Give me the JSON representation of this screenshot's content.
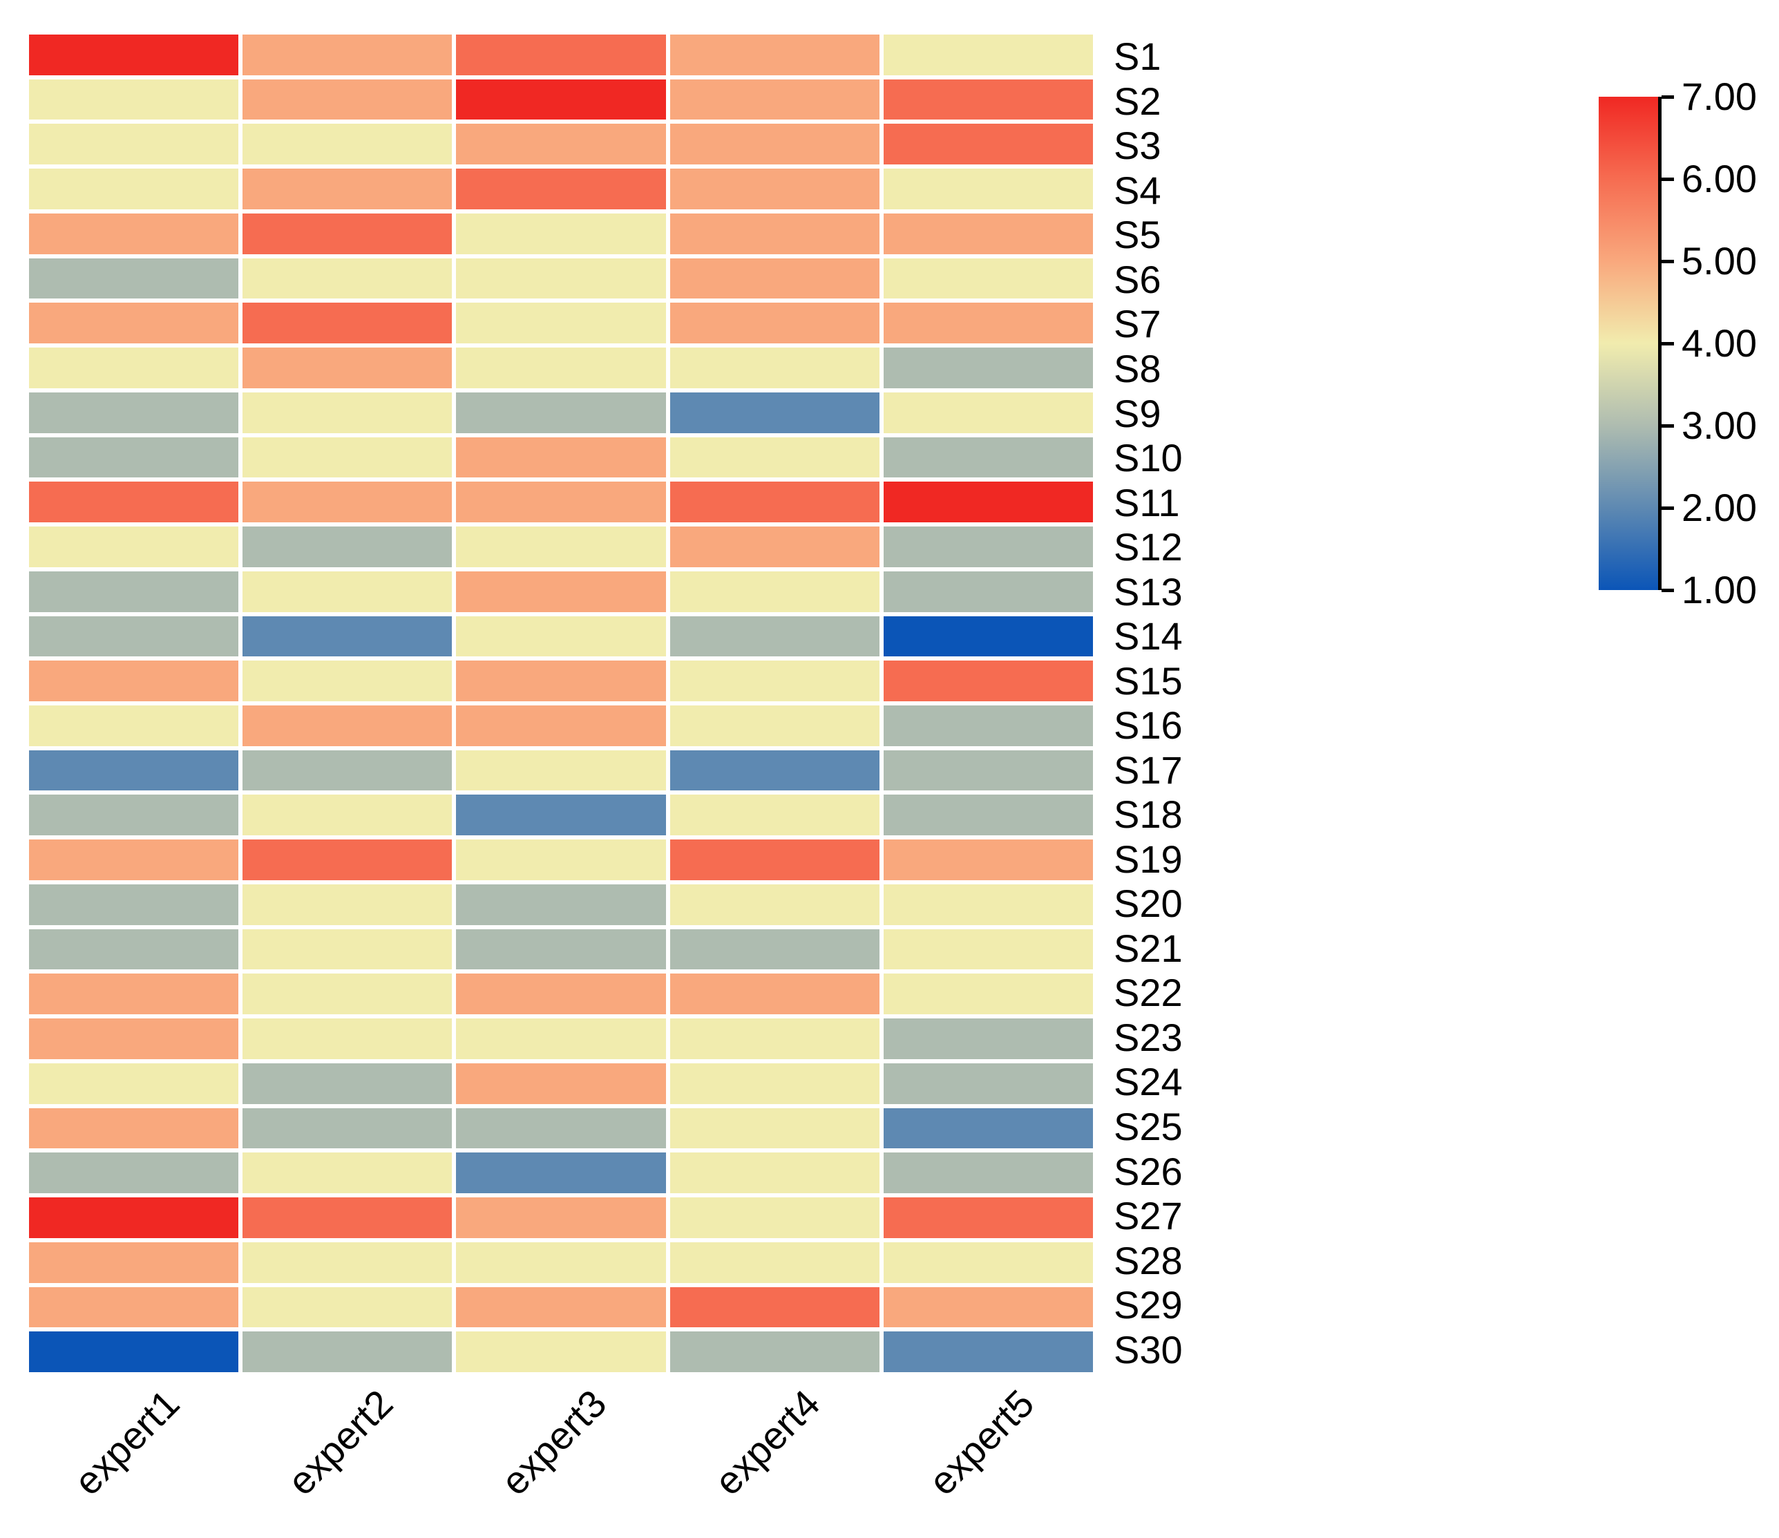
{
  "figure": {
    "background_color": "#ffffff"
  },
  "chart_data": {
    "type": "heatmap",
    "title": "",
    "xlabel": "",
    "ylabel": "",
    "columns": [
      "expert1",
      "expert2",
      "expert3",
      "expert4",
      "expert5"
    ],
    "rows": [
      "S1",
      "S2",
      "S3",
      "S4",
      "S5",
      "S6",
      "S7",
      "S8",
      "S9",
      "S10",
      "S11",
      "S12",
      "S13",
      "S14",
      "S15",
      "S16",
      "S17",
      "S18",
      "S19",
      "S20",
      "S21",
      "S22",
      "S23",
      "S24",
      "S25",
      "S26",
      "S27",
      "S28",
      "S29",
      "S30"
    ],
    "values": [
      [
        7,
        5,
        6,
        5,
        4
      ],
      [
        4,
        5,
        7,
        5,
        6
      ],
      [
        4,
        4,
        5,
        5,
        6
      ],
      [
        4,
        5,
        6,
        5,
        4
      ],
      [
        5,
        6,
        4,
        5,
        5
      ],
      [
        3,
        4,
        4,
        5,
        4
      ],
      [
        5,
        6,
        4,
        5,
        5
      ],
      [
        4,
        5,
        4,
        4,
        3
      ],
      [
        3,
        4,
        3,
        2,
        4
      ],
      [
        3,
        4,
        5,
        4,
        3
      ],
      [
        6,
        5,
        5,
        6,
        7
      ],
      [
        4,
        3,
        4,
        5,
        3
      ],
      [
        3,
        4,
        5,
        4,
        3
      ],
      [
        3,
        2,
        4,
        3,
        1
      ],
      [
        5,
        4,
        5,
        4,
        6
      ],
      [
        4,
        5,
        5,
        4,
        3
      ],
      [
        2,
        3,
        4,
        2,
        3
      ],
      [
        3,
        4,
        2,
        4,
        3
      ],
      [
        5,
        6,
        4,
        6,
        5
      ],
      [
        3,
        4,
        3,
        4,
        4
      ],
      [
        3,
        4,
        3,
        3,
        4
      ],
      [
        5,
        4,
        5,
        5,
        4
      ],
      [
        5,
        4,
        4,
        4,
        3
      ],
      [
        4,
        3,
        5,
        4,
        3
      ],
      [
        5,
        3,
        3,
        4,
        2
      ],
      [
        3,
        4,
        2,
        4,
        3
      ],
      [
        7,
        6,
        5,
        4,
        6
      ],
      [
        5,
        4,
        4,
        4,
        4
      ],
      [
        5,
        4,
        5,
        6,
        5
      ],
      [
        1,
        3,
        4,
        3,
        2
      ]
    ],
    "value_range": [
      1,
      7
    ],
    "palette": {
      "1": "#0b55b7",
      "2": "#5e89b2",
      "3": "#aebcb0",
      "4": "#f1ecae",
      "5": "#f9a87d",
      "6": "#f66c51",
      "7": "#f02823"
    },
    "grid_gap_color": "#ffffff",
    "legend_position": "right",
    "colorbar": {
      "ticks": [
        "7.00",
        "6.00",
        "5.00",
        "4.00",
        "3.00",
        "2.00",
        "1.00"
      ],
      "top_value": 7,
      "bottom_value": 1,
      "orientation": "vertical"
    }
  }
}
